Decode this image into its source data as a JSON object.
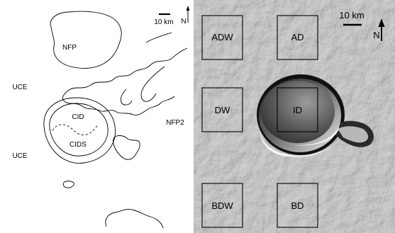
{
  "left_map": {
    "scale_label": "10 km",
    "north_label": "N",
    "units": [
      {
        "id": "nfp",
        "label": "NFP"
      },
      {
        "id": "uce-upper",
        "label": "UCE"
      },
      {
        "id": "uce-lower",
        "label": "UCE"
      },
      {
        "id": "nfp2",
        "label": "NFP2"
      },
      {
        "id": "cid",
        "label": "CID"
      },
      {
        "id": "cids",
        "label": "CIDS"
      }
    ]
  },
  "right_image": {
    "scale_label": "10 km",
    "north_label": "N",
    "boxes": [
      {
        "id": "adw",
        "label": "ADW"
      },
      {
        "id": "ad",
        "label": "AD"
      },
      {
        "id": "dw",
        "label": "DW"
      },
      {
        "id": "id",
        "label": "ID"
      },
      {
        "id": "bdw",
        "label": "BDW"
      },
      {
        "id": "bd",
        "label": "BD"
      }
    ]
  }
}
